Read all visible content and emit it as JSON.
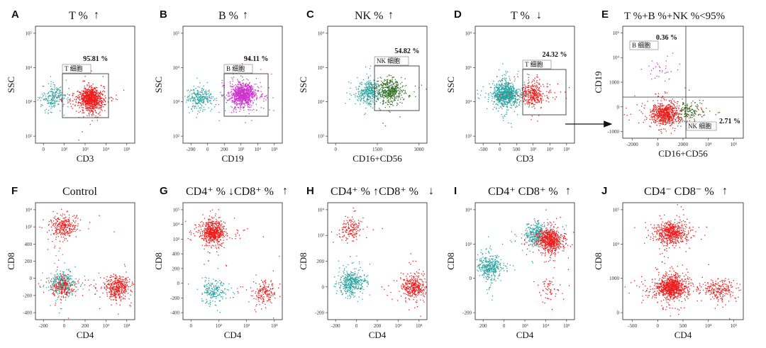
{
  "figure": {
    "colors": {
      "teal": "#2aa3a0",
      "red": "#ef1b1b",
      "magenta": "#cc33cc",
      "green": "#2f6e1f",
      "axis": "#222222"
    },
    "panel_titles": {
      "A": "T %",
      "B": "B %",
      "C": "NK %",
      "D": "T %",
      "E": "T %+B %+NK %<95%",
      "F": "Control",
      "G": "CD4⁺ % ↓CD8⁺ %",
      "H": "CD4⁺ % ↑CD8⁺ %",
      "I": "CD4⁺ CD8⁺ %",
      "J": "CD4⁻ CD8⁻ %"
    },
    "title_arrows": {
      "A": "↑",
      "B": "↑",
      "C": "↑",
      "D": "↓",
      "G": "↑",
      "H": "↓",
      "I": "↑",
      "J": "↑"
    }
  },
  "chart_data": [
    {
      "panel": "A",
      "type": "scatter",
      "xlabel": "CD3",
      "ylabel": "SSC",
      "xticks": [
        "0",
        "10²",
        "10³",
        "10⁴",
        "10⁵"
      ],
      "yticks": [
        "10⁵",
        "10⁴",
        "10³",
        "10²"
      ],
      "gate": {
        "label": "T 细胞",
        "percent": "95.81 %"
      },
      "populations": [
        {
          "color": "teal",
          "x": 0.18,
          "y": 0.6,
          "n": 220
        },
        {
          "color": "red",
          "x": 0.55,
          "y": 0.62,
          "n": 900
        }
      ]
    },
    {
      "panel": "B",
      "type": "scatter",
      "xlabel": "CD19",
      "ylabel": "SSC",
      "xticks": [
        "-200",
        "0",
        "200",
        "10³",
        "10⁴",
        "10⁵"
      ],
      "yticks": [
        "10⁵",
        "10⁴",
        "10³",
        "10²"
      ],
      "gate": {
        "label": "B 细胞",
        "percent": "94.11 %"
      },
      "populations": [
        {
          "color": "teal",
          "x": 0.16,
          "y": 0.61,
          "n": 260
        },
        {
          "color": "magenta",
          "x": 0.6,
          "y": 0.58,
          "n": 950
        }
      ]
    },
    {
      "panel": "C",
      "type": "scatter",
      "xlabel": "CD16+CD56",
      "ylabel": "SSC",
      "xticks": [
        "0",
        "1500",
        "3000"
      ],
      "yticks": [
        "10⁴",
        "10⁵",
        "10⁴",
        "10³"
      ],
      "gate": {
        "label": "NK 细胞",
        "percent": "54.82 %"
      },
      "populations": [
        {
          "color": "teal",
          "x": 0.42,
          "y": 0.56,
          "n": 360
        },
        {
          "color": "green",
          "x": 0.62,
          "y": 0.55,
          "n": 460
        }
      ]
    },
    {
      "panel": "D",
      "type": "scatter",
      "xlabel": "CD3",
      "ylabel": "SSC",
      "xticks": [
        "-500",
        "0",
        "500",
        "10³",
        "10⁴",
        "10⁵"
      ],
      "yticks": [
        "10⁴",
        "10⁵",
        "10⁴",
        "10³"
      ],
      "gate": {
        "label": "T 细胞",
        "percent": "24.32 %"
      },
      "populations": [
        {
          "color": "teal",
          "x": 0.3,
          "y": 0.58,
          "n": 900
        },
        {
          "color": "red",
          "x": 0.58,
          "y": 0.58,
          "n": 360
        }
      ]
    },
    {
      "panel": "E",
      "type": "scatter",
      "xlabel": "CD16+CD56",
      "ylabel": "CD19",
      "xticks": [
        "-2000",
        "0",
        "2000",
        "10⁴",
        "10⁵"
      ],
      "yticks": [
        "10⁵",
        "10⁴",
        "1000",
        "0",
        "-1000"
      ],
      "quadrant_labels": [
        {
          "label": "B 细胞",
          "percent": "0.36 %"
        },
        {
          "label": "NK 细胞",
          "percent": "2.71 %"
        }
      ],
      "populations": [
        {
          "color": "red",
          "x": 0.35,
          "y": 0.78,
          "n": 700
        },
        {
          "color": "green",
          "x": 0.55,
          "y": 0.76,
          "n": 140
        },
        {
          "color": "magenta",
          "x": 0.33,
          "y": 0.4,
          "n": 35
        }
      ]
    },
    {
      "panel": "F",
      "type": "scatter",
      "xlabel": "CD4",
      "ylabel": "CD8",
      "xticks": [
        "-200",
        "0",
        "200",
        "10³",
        "10⁴"
      ],
      "yticks": [
        "10⁴",
        "10³",
        "400",
        "200",
        "0",
        "-200",
        "-400"
      ],
      "populations": [
        {
          "color": "red",
          "x": 0.28,
          "y": 0.2,
          "n": 300
        },
        {
          "color": "teal",
          "x": 0.27,
          "y": 0.68,
          "n": 350
        },
        {
          "color": "red",
          "x": 0.27,
          "y": 0.72,
          "n": 200
        },
        {
          "color": "red",
          "x": 0.82,
          "y": 0.72,
          "n": 420
        }
      ]
    },
    {
      "panel": "G",
      "type": "scatter",
      "xlabel": "CD4",
      "ylabel": "CD8",
      "xticks": [
        "0",
        "10²",
        "10³",
        "10⁴"
      ],
      "yticks": [
        "10⁵",
        "10⁴",
        "10³",
        "400",
        "200",
        "0",
        "-200",
        "-400"
      ],
      "populations": [
        {
          "color": "red",
          "x": 0.3,
          "y": 0.25,
          "n": 650
        },
        {
          "color": "teal",
          "x": 0.3,
          "y": 0.75,
          "n": 200
        },
        {
          "color": "red",
          "x": 0.82,
          "y": 0.76,
          "n": 180
        }
      ]
    },
    {
      "panel": "H",
      "type": "scatter",
      "xlabel": "CD4",
      "ylabel": "CD8",
      "xticks": [
        "-200",
        "0",
        "200",
        "10³",
        "10⁴"
      ],
      "yticks": [
        "10⁴",
        "10³",
        "200",
        "0",
        "-200"
      ],
      "populations": [
        {
          "color": "red",
          "x": 0.24,
          "y": 0.22,
          "n": 160
        },
        {
          "color": "teal",
          "x": 0.24,
          "y": 0.68,
          "n": 420
        },
        {
          "color": "red",
          "x": 0.85,
          "y": 0.72,
          "n": 380
        }
      ]
    },
    {
      "panel": "I",
      "type": "scatter",
      "xlabel": "CD4",
      "ylabel": "CD8",
      "xticks": [
        "200",
        "0",
        "10³",
        "10⁴",
        "10⁵"
      ],
      "yticks": [
        "10⁴",
        "10³",
        "0",
        "-200"
      ],
      "populations": [
        {
          "color": "teal",
          "x": 0.14,
          "y": 0.55,
          "n": 380
        },
        {
          "color": "teal",
          "x": 0.62,
          "y": 0.27,
          "n": 350
        },
        {
          "color": "red",
          "x": 0.75,
          "y": 0.32,
          "n": 700
        },
        {
          "color": "red",
          "x": 0.72,
          "y": 0.74,
          "n": 60
        }
      ]
    },
    {
      "panel": "J",
      "type": "scatter",
      "xlabel": "CD4",
      "ylabel": "CD8",
      "xticks": [
        "-500",
        "0",
        "500",
        "10⁴",
        "10⁵"
      ],
      "yticks": [
        "10⁵",
        "10⁴",
        "1000",
        "0"
      ],
      "populations": [
        {
          "color": "red",
          "x": 0.4,
          "y": 0.26,
          "n": 600
        },
        {
          "color": "red",
          "x": 0.4,
          "y": 0.72,
          "n": 950
        },
        {
          "color": "red",
          "x": 0.8,
          "y": 0.74,
          "n": 220
        }
      ]
    }
  ]
}
